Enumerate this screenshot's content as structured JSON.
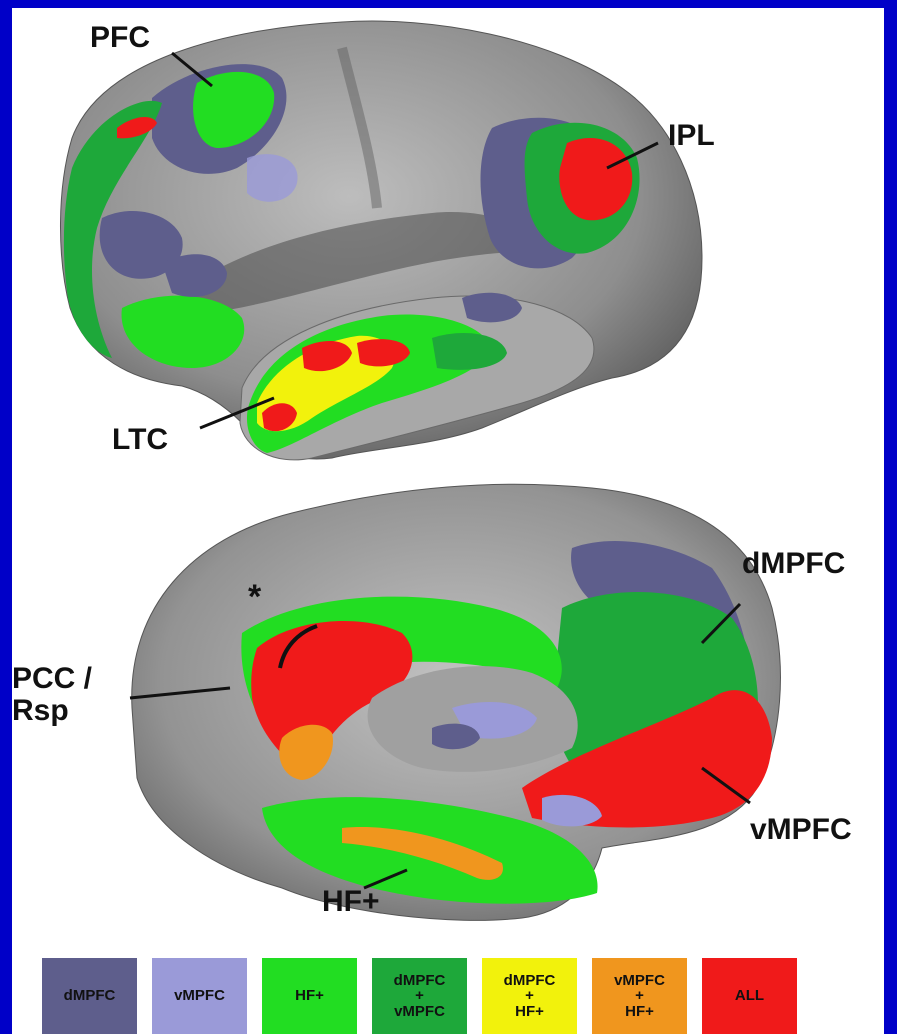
{
  "labels": {
    "pfc": "PFC",
    "ipl": "IPL",
    "ltc": "LTC",
    "dmpfc": "dMPFC",
    "pcc_line1": "PCC /",
    "pcc_line2": "Rsp",
    "vmpfc": "vMPFC",
    "hf": "HF+",
    "asterisk": "*"
  },
  "colors": {
    "frame": "#0000c8",
    "cortex": "#8a8a8a",
    "cortex_light": "#bdbdbd",
    "dmpfc": "#5e5e8c",
    "vmpfc": "#9a9ad8",
    "hf": "#22dd22",
    "dmpfc_vmpfc": "#1ea83a",
    "dmpfc_hf": "#f2f20c",
    "vmpfc_hf": "#f0961e",
    "all": "#f01a1a"
  },
  "legend": [
    {
      "lines": [
        "dMPFC"
      ],
      "color": "#5e5e8c"
    },
    {
      "lines": [
        "vMPFC"
      ],
      "color": "#9a9ad8"
    },
    {
      "lines": [
        "HF+"
      ],
      "color": "#22dd22"
    },
    {
      "lines": [
        "dMPFC",
        "+",
        "vMPFC"
      ],
      "color": "#1ea83a"
    },
    {
      "lines": [
        "dMPFC",
        "+",
        "HF+"
      ],
      "color": "#f2f20c"
    },
    {
      "lines": [
        "vMPFC",
        "+",
        "HF+"
      ],
      "color": "#f0961e"
    },
    {
      "lines": [
        "ALL"
      ],
      "color": "#f01a1a"
    }
  ]
}
